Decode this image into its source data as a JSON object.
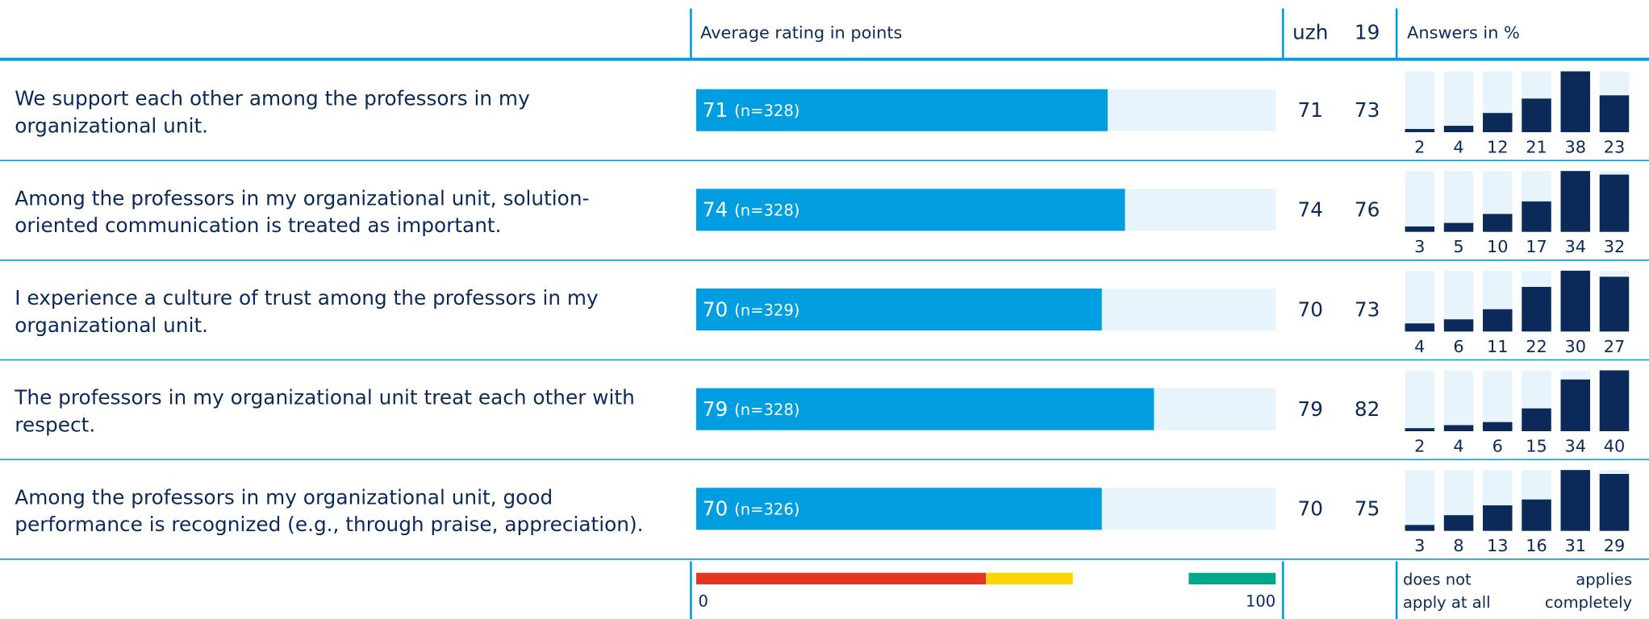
{
  "header": {
    "average": "Average rating in points",
    "uzh": "uzh",
    "y19": "19",
    "answers": "Answers in %"
  },
  "rows": [
    {
      "statement": [
        "We support each other among the professors in my",
        "organizational unit."
      ],
      "average": 71,
      "n_label": "(n=328)",
      "uzh": 71,
      "y19": 73,
      "answers": [
        2,
        4,
        12,
        21,
        38,
        23
      ]
    },
    {
      "statement": [
        "Among the professors in my organizational unit, solution-",
        "oriented communication is treated as important."
      ],
      "average": 74,
      "n_label": "(n=328)",
      "uzh": 74,
      "y19": 76,
      "answers": [
        3,
        5,
        10,
        17,
        34,
        32
      ]
    },
    {
      "statement": [
        "I experience a culture of trust among the professors in my",
        "organizational unit."
      ],
      "average": 70,
      "n_label": "(n=329)",
      "uzh": 70,
      "y19": 73,
      "answers": [
        4,
        6,
        11,
        22,
        30,
        27
      ]
    },
    {
      "statement": [
        "The professors in my organizational unit treat each other with",
        "respect."
      ],
      "average": 79,
      "n_label": "(n=328)",
      "uzh": 79,
      "y19": 82,
      "answers": [
        2,
        4,
        6,
        15,
        34,
        40
      ]
    },
    {
      "statement": [
        "Among the professors in my organizational unit, good",
        "performance is recognized (e.g., through praise, appreciation)."
      ],
      "average": 70,
      "n_label": "(n=326)",
      "uzh": 70,
      "y19": 75,
      "answers": [
        3,
        8,
        13,
        16,
        31,
        29
      ]
    }
  ],
  "scale": {
    "min": 0,
    "max": 100,
    "bands": [
      {
        "from": 0,
        "to": 50,
        "color": "#e63323"
      },
      {
        "from": 50,
        "to": 65,
        "color": "#ffd500"
      },
      {
        "from": 85,
        "to": 100,
        "color": "#00a789"
      }
    ]
  },
  "answer_legend": {
    "low": [
      "does not",
      "apply at all"
    ],
    "high": [
      "applies",
      "completely"
    ]
  },
  "colors": {
    "bar": "#009ee0",
    "bar_bg": "#e8f4fc",
    "answer": "#0b2a5a",
    "answer_bg": "#e8f4fc"
  }
}
